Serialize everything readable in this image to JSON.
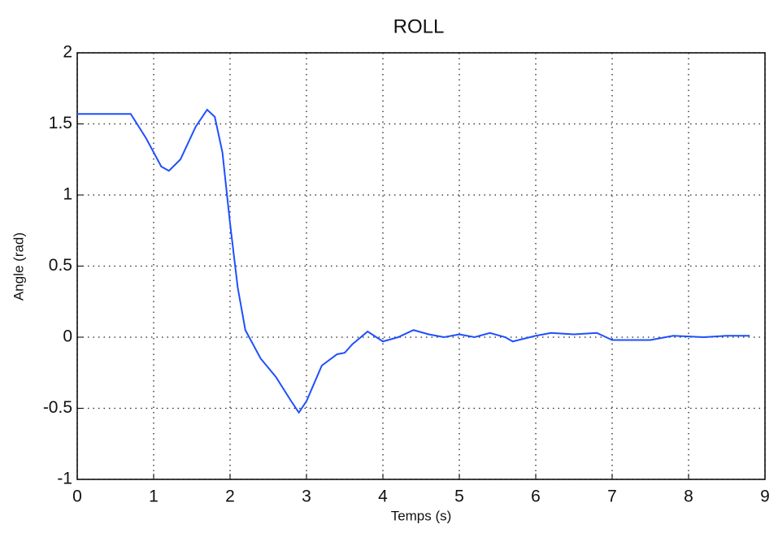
{
  "chart_data": {
    "type": "line",
    "title": "ROLL",
    "x_label": "Temps (s)",
    "y_label": "Angle  (rad)",
    "x": [
      0,
      0.7,
      0.9,
      1.1,
      1.2,
      1.35,
      1.55,
      1.7,
      1.8,
      1.9,
      2.0,
      2.1,
      2.2,
      2.4,
      2.6,
      2.8,
      2.9,
      3.0,
      3.2,
      3.4,
      3.5,
      3.6,
      3.8,
      4.0,
      4.2,
      4.4,
      4.6,
      4.8,
      5.0,
      5.2,
      5.4,
      5.6,
      5.7,
      6.0,
      6.2,
      6.5,
      6.8,
      7.0,
      7.5,
      7.8,
      8.2,
      8.5,
      8.8
    ],
    "values": [
      1.57,
      1.57,
      1.4,
      1.2,
      1.17,
      1.25,
      1.48,
      1.6,
      1.55,
      1.3,
      0.8,
      0.35,
      0.05,
      -0.15,
      -0.28,
      -0.45,
      -0.53,
      -0.45,
      -0.2,
      -0.12,
      -0.11,
      -0.05,
      0.04,
      -0.03,
      0.0,
      0.05,
      0.02,
      0.0,
      0.02,
      0.0,
      0.03,
      0.0,
      -0.03,
      0.01,
      0.03,
      0.02,
      0.03,
      -0.02,
      -0.02,
      0.01,
      0.0,
      0.01,
      0.01
    ],
    "color": "#1f4fff",
    "xlim": [
      0,
      9
    ],
    "xticks": [
      0,
      1,
      2,
      3,
      4,
      5,
      6,
      7,
      8,
      9
    ],
    "ylim": [
      -1,
      2
    ],
    "yticks": [
      -1,
      -0.5,
      0,
      0.5,
      1,
      1.5,
      2
    ],
    "grid": true
  }
}
